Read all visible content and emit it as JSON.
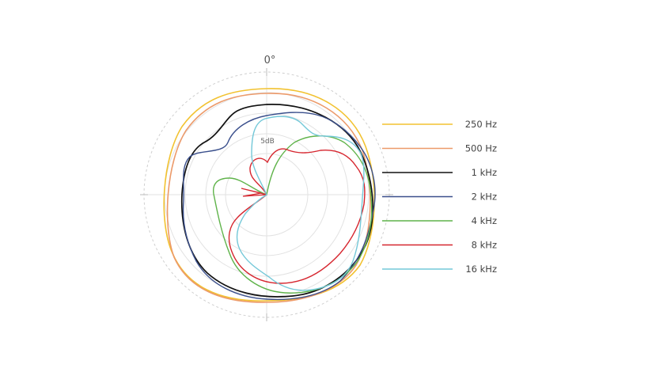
{
  "chart_data": {
    "type": "polar",
    "angle_labels": [
      "0°"
    ],
    "ring_label": "5dB",
    "grid": true,
    "legend_position": "right",
    "series": [
      {
        "name": "250 Hz",
        "color": "#f2c230"
      },
      {
        "name": "500 Hz",
        "color": "#ec9a6a"
      },
      {
        "name": "1 kHz",
        "color": "#111111"
      },
      {
        "name": "2 kHz",
        "color": "#3a4f8c"
      },
      {
        "name": "4 kHz",
        "color": "#5fb34a"
      },
      {
        "name": "8 kHz",
        "color": "#d6262f"
      },
      {
        "name": "16 kHz",
        "color": "#74c8d8"
      }
    ]
  }
}
